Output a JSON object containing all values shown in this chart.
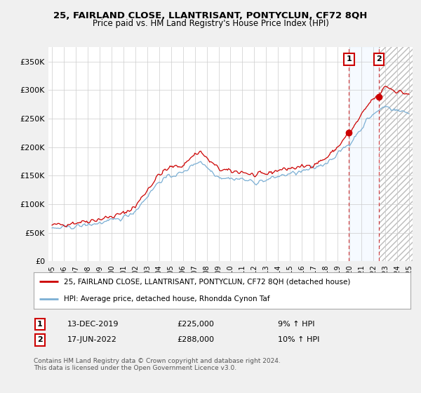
{
  "title": "25, FAIRLAND CLOSE, LLANTRISANT, PONTYCLUN, CF72 8QH",
  "subtitle": "Price paid vs. HM Land Registry's House Price Index (HPI)",
  "legend_line1": "25, FAIRLAND CLOSE, LLANTRISANT, PONTYCLUN, CF72 8QH (detached house)",
  "legend_line2": "HPI: Average price, detached house, Rhondda Cynon Taf",
  "footnote": "Contains HM Land Registry data © Crown copyright and database right 2024.\nThis data is licensed under the Open Government Licence v3.0.",
  "annotation1_label": "1",
  "annotation1_date": "13-DEC-2019",
  "annotation1_price": "£225,000",
  "annotation1_hpi": "9% ↑ HPI",
  "annotation2_label": "2",
  "annotation2_date": "17-JUN-2022",
  "annotation2_price": "£288,000",
  "annotation2_hpi": "10% ↑ HPI",
  "red_color": "#cc0000",
  "blue_color": "#7bafd4",
  "background_color": "#f0f0f0",
  "plot_bg_color": "#ffffff",
  "grid_color": "#cccccc",
  "shade_color": "#ddeeff",
  "hatch_color": "#bbbbbb",
  "ylim": [
    0,
    375000
  ],
  "yticks": [
    0,
    50000,
    100000,
    150000,
    200000,
    250000,
    300000,
    350000
  ],
  "ytick_labels": [
    "£0",
    "£50K",
    "£100K",
    "£150K",
    "£200K",
    "£250K",
    "£300K",
    "£350K"
  ],
  "sale1_x": 2019.958,
  "sale1_y": 225000,
  "sale2_x": 2022.46,
  "sale2_y": 288000,
  "xmin": 1994.7,
  "xmax": 2025.3
}
